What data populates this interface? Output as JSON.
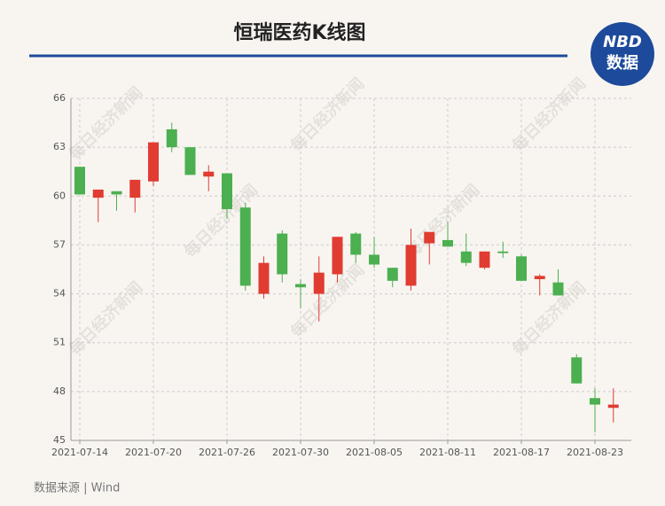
{
  "chart_data": {
    "type": "candlestick",
    "title": "恒瑞医药K线图",
    "logo_top": "NBD",
    "logo_bottom": "数据",
    "source": "数据来源 | Wind",
    "watermark": "每日经济新闻",
    "up_color": "#e03c31",
    "down_color": "#4caf50",
    "grid": true,
    "categories": [
      "2021-07-14",
      null,
      null,
      null,
      "2021-07-20",
      null,
      null,
      null,
      "2021-07-26",
      null,
      null,
      null,
      "2021-07-30",
      null,
      null,
      null,
      "2021-08-05",
      null,
      null,
      null,
      "2021-08-11",
      null,
      null,
      null,
      "2021-08-17",
      null,
      null,
      null,
      "2021-08-23",
      null
    ],
    "open": [
      61.8,
      59.9,
      60.3,
      59.9,
      60.9,
      64.1,
      63.0,
      61.2,
      61.4,
      59.3,
      54.0,
      57.7,
      54.6,
      54.0,
      55.2,
      57.7,
      56.4,
      55.6,
      54.5,
      57.1,
      57.3,
      56.6,
      55.6,
      56.6,
      56.3,
      54.9,
      54.7,
      50.1,
      47.6,
      47.0
    ],
    "high": [
      61.8,
      60.4,
      60.3,
      61.0,
      63.3,
      64.5,
      63.0,
      61.9,
      61.4,
      59.6,
      56.3,
      57.9,
      54.9,
      56.3,
      57.5,
      57.8,
      57.5,
      55.6,
      58.0,
      57.8,
      58.4,
      57.7,
      56.6,
      57.2,
      56.4,
      55.2,
      55.5,
      50.3,
      48.2,
      48.2
    ],
    "low": [
      60.1,
      58.4,
      59.1,
      59.0,
      60.6,
      62.7,
      61.3,
      60.3,
      58.6,
      54.2,
      53.7,
      54.7,
      53.1,
      52.3,
      54.7,
      55.9,
      55.6,
      54.4,
      54.2,
      55.8,
      56.9,
      55.7,
      55.5,
      56.2,
      54.8,
      53.9,
      53.9,
      48.5,
      45.5,
      46.1
    ],
    "close": [
      60.1,
      60.4,
      60.1,
      61.0,
      63.3,
      63.0,
      61.3,
      61.5,
      59.2,
      54.5,
      55.9,
      55.2,
      54.4,
      55.3,
      57.5,
      56.4,
      55.8,
      54.8,
      57.0,
      57.8,
      56.9,
      55.9,
      56.6,
      56.5,
      54.8,
      55.1,
      53.9,
      48.5,
      47.2,
      47.2
    ],
    "ylim": [
      45,
      66
    ],
    "yticks": [
      45,
      48,
      51,
      54,
      57,
      60,
      63,
      66
    ]
  }
}
